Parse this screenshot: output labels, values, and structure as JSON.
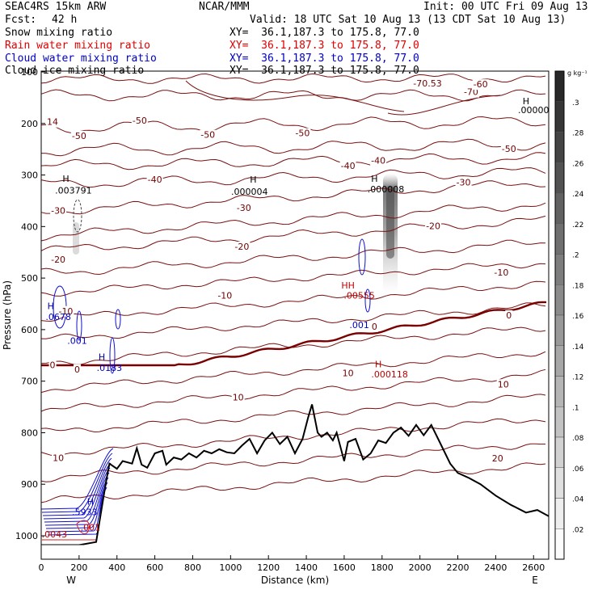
{
  "header": {
    "model": "SEAC4RS 15km ARW",
    "center": "NCAR/MMM",
    "init": "Init: 00 UTC Fri 09 Aug 13",
    "fcst_label": "Fcst:",
    "fcst_value": "42 h",
    "valid": "Valid: 18 UTC Sat 10 Aug 13 (13 CDT Sat 10 Aug 13)",
    "fields": [
      {
        "name": "Snow mixing ratio",
        "xy": "XY=  36.1,187.3 to 175.8, 77.0",
        "color": "#000000"
      },
      {
        "name": "Rain water mixing ratio",
        "xy": "XY=  36.1,187.3 to 175.8, 77.0",
        "color": "#e00000"
      },
      {
        "name": "Cloud water mixing ratio",
        "xy": "XY=  36.1,187.3 to 175.8, 77.0",
        "color": "#0000c0"
      },
      {
        "name": "Cloud ice mixing ratio",
        "xy": "XY=  36.1,187.3 to 175.8, 77.0",
        "color": "#000000"
      }
    ]
  },
  "colorbar": {
    "unit": "g kg⁻¹",
    "ticks": [
      ".3",
      ".28",
      ".26",
      ".24",
      ".22",
      ".2",
      ".18",
      ".16",
      ".14",
      ".12",
      ".1",
      ".08",
      ".06",
      ".04",
      ".02"
    ]
  },
  "chart_data": {
    "type": "contour-cross-section",
    "xlabel": "Distance (km)",
    "ylabel": "Pressure (hPa)",
    "xlim": [
      0,
      2680
    ],
    "ylim": [
      1050,
      100
    ],
    "x_ticks": [
      0,
      200,
      400,
      600,
      800,
      1000,
      1200,
      1400,
      1600,
      1800,
      2000,
      2200,
      2400,
      2600
    ],
    "y_ticks": [
      100,
      200,
      300,
      400,
      500,
      600,
      700,
      800,
      900,
      1000
    ],
    "x_end_labels": {
      "left": "W",
      "right": "E"
    },
    "temperature_contour_labels": [
      {
        "text": "-70.53",
        "x": 2040,
        "p": 128,
        "color": "#700000"
      },
      {
        "text": "-70",
        "x": 2270,
        "p": 145
      },
      {
        "text": "-60",
        "x": 2320,
        "p": 130
      },
      {
        "text": "-50",
        "x": 520,
        "p": 200
      },
      {
        "text": "-50",
        "x": 200,
        "p": 230
      },
      {
        "text": "-50",
        "x": 880,
        "p": 228
      },
      {
        "text": "-50",
        "x": 1380,
        "p": 225
      },
      {
        "text": "-50",
        "x": 2470,
        "p": 255
      },
      {
        "text": "-40",
        "x": 600,
        "p": 315
      },
      {
        "text": "-40",
        "x": 1620,
        "p": 288
      },
      {
        "text": "-40",
        "x": 1780,
        "p": 278
      },
      {
        "text": "-30",
        "x": 1070,
        "p": 370
      },
      {
        "text": "-30",
        "x": 90,
        "p": 375
      },
      {
        "text": "-30",
        "x": 2230,
        "p": 320
      },
      {
        "text": "-20",
        "x": 1060,
        "p": 445
      },
      {
        "text": "-20",
        "x": 90,
        "p": 470
      },
      {
        "text": "-20",
        "x": 2070,
        "p": 405
      },
      {
        "text": "-10",
        "x": 970,
        "p": 540
      },
      {
        "text": "-10",
        "x": 130,
        "p": 570
      },
      {
        "text": "-10",
        "x": 2430,
        "p": 495
      },
      {
        "text": "0",
        "x": 60,
        "p": 675
      },
      {
        "text": "0",
        "x": 190,
        "p": 683
      },
      {
        "text": "0",
        "x": 1760,
        "p": 600
      },
      {
        "text": "0",
        "x": 2470,
        "p": 578
      },
      {
        "text": "10",
        "x": 1620,
        "p": 690
      },
      {
        "text": "10",
        "x": 1040,
        "p": 737
      },
      {
        "text": "10",
        "x": 2440,
        "p": 712
      },
      {
        "text": "10",
        "x": 90,
        "p": 855
      },
      {
        "text": "20",
        "x": 2410,
        "p": 856
      },
      {
        "text": "14",
        "x": 60,
        "p": 203
      }
    ],
    "maxima": [
      {
        "text": "H",
        "x": 130,
        "p": 313,
        "color": "#000000"
      },
      {
        "text": ".003791",
        "x": 170,
        "p": 336,
        "color": "#000000"
      },
      {
        "text": "H",
        "x": 1120,
        "p": 315,
        "color": "#000000"
      },
      {
        "text": ".000004",
        "x": 1100,
        "p": 338,
        "color": "#000000"
      },
      {
        "text": "H",
        "x": 1760,
        "p": 313,
        "color": "#000000"
      },
      {
        "text": ".000008",
        "x": 1820,
        "p": 334,
        "color": "#000000"
      },
      {
        "text": "H",
        "x": 2560,
        "p": 163,
        "color": "#000000"
      },
      {
        "text": ".00000",
        "x": 2600,
        "p": 180,
        "color": "#000000"
      },
      {
        "text": "H",
        "x": 50,
        "p": 560,
        "color": "#0000c0"
      },
      {
        "text": ".0678",
        "x": 90,
        "p": 581,
        "color": "#0000c0"
      },
      {
        "text": ".001",
        "x": 190,
        "p": 628,
        "color": "#0000c0"
      },
      {
        "text": "H",
        "x": 320,
        "p": 659,
        "color": "#0000c0"
      },
      {
        "text": ".0183",
        "x": 360,
        "p": 680,
        "color": "#0000c0"
      },
      {
        "text": "HH",
        "x": 1620,
        "p": 520,
        "color": "#c00000"
      },
      {
        "text": ".00555",
        "x": 1680,
        "p": 540,
        "color": "#c00000"
      },
      {
        "text": ".001",
        "x": 1680,
        "p": 597,
        "color": "#0000c0"
      },
      {
        "text": "H",
        "x": 1780,
        "p": 673,
        "color": "#c00000"
      },
      {
        "text": ".000118",
        "x": 1840,
        "p": 693,
        "color": "#c00000"
      },
      {
        "text": "H",
        "x": 260,
        "p": 940,
        "color": "#0000c0"
      },
      {
        "text": ".5933",
        "x": 230,
        "p": 960,
        "color": "#0000c0"
      },
      {
        "text": ".0043",
        "x": 70,
        "p": 1003,
        "color": "#c00000"
      },
      {
        "text": ".001",
        "x": 260,
        "p": 990,
        "color": "#c00000"
      }
    ]
  }
}
